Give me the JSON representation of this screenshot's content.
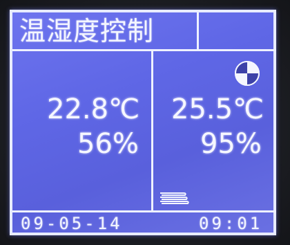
{
  "display": {
    "title": "温湿度控制",
    "left_panel": {
      "temperature": "22.8℃",
      "humidity": "56%"
    },
    "right_panel": {
      "temperature": "25.5℃",
      "humidity": "95%"
    },
    "footer": {
      "date": "09-05-14",
      "time": "09:01"
    },
    "icons": {
      "status_top_right": "fan-icon",
      "status_bottom": "heater-icon"
    },
    "colors": {
      "screen_background": "#6067e4",
      "foreground": "#f2f4ff"
    }
  }
}
